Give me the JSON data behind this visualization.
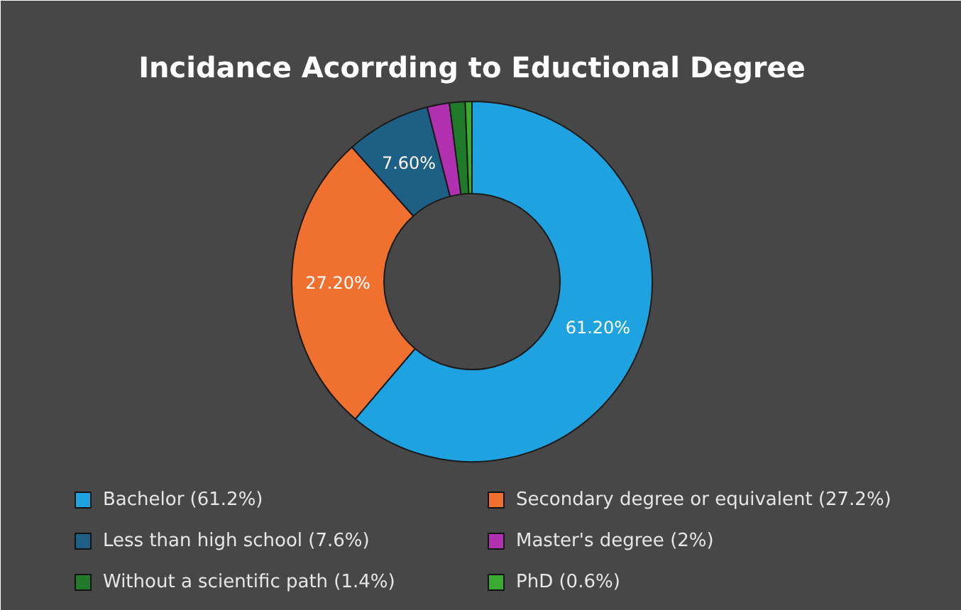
{
  "chart_data": {
    "type": "donut",
    "title": "Incidance Acorrding to Eductional Degree",
    "categories": [
      "Bachelor (61.2%)",
      "Secondary degree or equivalent (27.2%)",
      "Less than high school (7.6%)",
      "Master's degree (2%)",
      "Without a scientific path (1.4%)",
      "PhD (0.6%)"
    ],
    "values": [
      61.2,
      27.2,
      7.6,
      2,
      1.4,
      0.6
    ],
    "colors": [
      "#1fa3e0",
      "#f07030",
      "#1e5f85",
      "#b030b0",
      "#1f7a2a",
      "#3aaa30"
    ],
    "value_labels": [
      "61.20%",
      "27.20%",
      "7.60%",
      null,
      null,
      null
    ],
    "legend": "bottom"
  }
}
